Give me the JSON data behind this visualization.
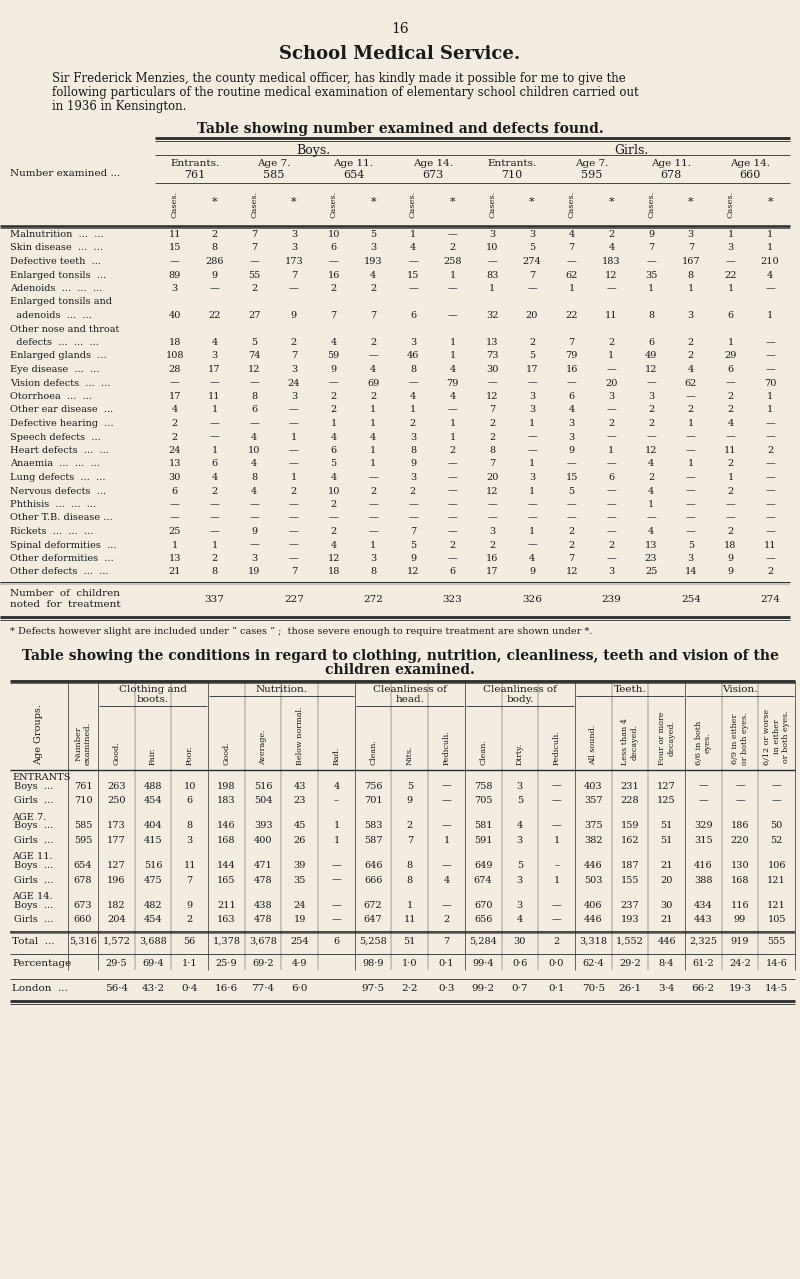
{
  "page_number": "16",
  "title": "School Medical Service.",
  "intro_line1": "Sir Frederick Menzies, the county medical officer, has kindly made it possible for me to give the",
  "intro_line2": "following particulars of the routine medical examination of elementary school children carried out",
  "intro_line3": "in 1936 in Kensington.",
  "table1_title": "Table showing number examined and defects found.",
  "table1_row_labels": [
    "Malnutrition  ...  ...",
    "Skin disease  ...  ...",
    "Defective teeth  ...",
    "Enlarged tonsils  ...",
    "Adenoids  ...  ...  ...",
    "Enlarged tonsils and",
    "  adenoids  ...  ...",
    "Other nose and throat",
    "  defects  ...  ...  ...",
    "Enlarged glands  ...",
    "Eye disease  ...  ...",
    "Vision defects  ...  ...",
    "Otorrhoea  ...  ...",
    "Other ear disease  ...",
    "Defective hearing  ...",
    "Speech defects  ...",
    "Heart defects  ...  ...",
    "Anaemia  ...  ...  ...",
    "Lung defects  ...  ...",
    "Nervous defects  ...",
    "Phthisis  ...  ...  ...",
    "Other T.B. disease ...",
    "Rickets  ...  ...  ...",
    "Spinal deformities  ...",
    "Other deformities  ...",
    "Other defects  ...  ..."
  ],
  "table1_data": [
    [
      "11",
      "2",
      "7",
      "3",
      "10",
      "5",
      "1",
      "—",
      "3",
      "3",
      "4",
      "2",
      "9",
      "3",
      "1",
      "1"
    ],
    [
      "15",
      "8",
      "7",
      "3",
      "6",
      "3",
      "4",
      "2",
      "10",
      "5",
      "7",
      "4",
      "7",
      "7",
      "3",
      "1"
    ],
    [
      "—",
      "286",
      "—",
      "173",
      "—",
      "193",
      "—",
      "258",
      "—",
      "274",
      "—",
      "183",
      "—",
      "167",
      "—",
      "210"
    ],
    [
      "89",
      "9",
      "55",
      "7",
      "16",
      "4",
      "15",
      "1",
      "83",
      "7",
      "62",
      "12",
      "35",
      "8",
      "22",
      "4"
    ],
    [
      "3",
      "—",
      "2",
      "—",
      "2",
      "2",
      "—",
      "—",
      "1",
      "—",
      "1",
      "—",
      "1",
      "1",
      "1",
      "—"
    ],
    null,
    [
      "40",
      "22",
      "27",
      "9",
      "7",
      "7",
      "6",
      "—",
      "32",
      "20",
      "22",
      "11",
      "8",
      "3",
      "6",
      "1"
    ],
    null,
    [
      "18",
      "4",
      "5",
      "2",
      "4",
      "2",
      "3",
      "1",
      "13",
      "2",
      "7",
      "2",
      "6",
      "2",
      "1",
      "—"
    ],
    [
      "108",
      "3",
      "74",
      "7",
      "59",
      "—",
      "46",
      "1",
      "73",
      "5",
      "79",
      "1",
      "49",
      "2",
      "29",
      "—"
    ],
    [
      "28",
      "17",
      "12",
      "3",
      "9",
      "4",
      "8",
      "4",
      "30",
      "17",
      "16",
      "—",
      "12",
      "4",
      "6",
      "—"
    ],
    [
      "—",
      "—",
      "—",
      "24",
      "—",
      "69",
      "—",
      "79",
      "—",
      "—",
      "—",
      "20",
      "—",
      "62",
      "—",
      "70"
    ],
    [
      "17",
      "11",
      "8",
      "3",
      "2",
      "2",
      "4",
      "4",
      "12",
      "3",
      "6",
      "3",
      "3",
      "—",
      "2",
      "1"
    ],
    [
      "4",
      "1",
      "6",
      "—",
      "2",
      "1",
      "1",
      "—",
      "7",
      "3",
      "4",
      "—",
      "2",
      "2",
      "2",
      "1"
    ],
    [
      "2",
      "—",
      "—",
      "—",
      "1",
      "1",
      "2",
      "1",
      "2",
      "1",
      "3",
      "2",
      "2",
      "1",
      "4",
      "—"
    ],
    [
      "2",
      "—",
      "4",
      "1",
      "4",
      "4",
      "3",
      "1",
      "2",
      "—",
      "3",
      "—",
      "—",
      "—",
      "—",
      "—"
    ],
    [
      "24",
      "1",
      "10",
      "—",
      "6",
      "1",
      "8",
      "2",
      "8",
      "—",
      "9",
      "1",
      "12",
      "—",
      "11",
      "2"
    ],
    [
      "13",
      "6",
      "4",
      "—",
      "5",
      "1",
      "9",
      "—",
      "7",
      "1",
      "—",
      "—",
      "4",
      "1",
      "2",
      "—"
    ],
    [
      "30",
      "4",
      "8",
      "1",
      "4",
      "—",
      "3",
      "—",
      "20",
      "3",
      "15",
      "6",
      "2",
      "—",
      "1",
      "—"
    ],
    [
      "6",
      "2",
      "4",
      "2",
      "10",
      "2",
      "2",
      "—",
      "12",
      "1",
      "5",
      "—",
      "4",
      "—",
      "2",
      "—"
    ],
    [
      "—",
      "—",
      "—",
      "—",
      "2",
      "—",
      "—",
      "—",
      "—",
      "—",
      "—",
      "—",
      "1",
      "—",
      "—",
      "—"
    ],
    [
      "—",
      "—",
      "—",
      "—",
      "—",
      "—",
      "—",
      "—",
      "—",
      "—",
      "—",
      "—",
      "—",
      "—",
      "—",
      "—"
    ],
    [
      "25",
      "—",
      "9",
      "—",
      "2",
      "—",
      "7",
      "—",
      "3",
      "1",
      "2",
      "—",
      "4",
      "—",
      "2",
      "—"
    ],
    [
      "1",
      "1",
      "—",
      "—",
      "4",
      "1",
      "5",
      "2",
      "2",
      "—",
      "2",
      "2",
      "13",
      "5",
      "18",
      "11"
    ],
    [
      "13",
      "2",
      "3",
      "—",
      "12",
      "3",
      "9",
      "—",
      "16",
      "4",
      "7",
      "—",
      "23",
      "3",
      "9",
      "—"
    ],
    [
      "21",
      "8",
      "19",
      "7",
      "18",
      "8",
      "12",
      "6",
      "17",
      "9",
      "12",
      "3",
      "25",
      "14",
      "9",
      "2"
    ]
  ],
  "table1_treatment": [
    "337",
    "227",
    "272",
    "323",
    "326",
    "239",
    "254",
    "274"
  ],
  "footnote": "* Defects however slight are included under “ cases ” ;  those severe enough to require treatment are shown under *.",
  "table2_title1": "Table showing the conditions in regard to clothing, nutrition, cleanliness, teeth and vision of the",
  "table2_title2": "children examined.",
  "table2_sub_col_labels": [
    "Good.",
    "Fair.",
    "Poor.",
    "Good.",
    "Average.",
    "Below normal.",
    "Bad.",
    "Clean.",
    "Nits.",
    "Pediculi.",
    "Clean.",
    "Dirty.",
    "Pediculi.",
    "All sound.",
    "Less than 4\ndecayed.",
    "Four or more\ndecayed.",
    "6/6 in both\neyes.",
    "6/9 in either\nor both eyes.",
    "6/12 or worse\nin either\nor both eyes."
  ],
  "table2_data": [
    [
      "761",
      "263",
      "488",
      "10",
      "198",
      "516",
      "43",
      "4",
      "756",
      "5",
      "—",
      "758",
      "3",
      "—",
      "403",
      "231",
      "127",
      "—",
      "—",
      "—"
    ],
    [
      "710",
      "250",
      "454",
      "6",
      "183",
      "504",
      "23",
      "–",
      "701",
      "9",
      "—",
      "705",
      "5",
      "—",
      "357",
      "228",
      "125",
      "—",
      "—",
      "—"
    ],
    [
      "585",
      "173",
      "404",
      "8",
      "146",
      "393",
      "45",
      "1",
      "583",
      "2",
      "—",
      "581",
      "4",
      "—",
      "375",
      "159",
      "51",
      "329",
      "186",
      "50"
    ],
    [
      "595",
      "177",
      "415",
      "3",
      "168",
      "400",
      "26",
      "1",
      "587",
      "7",
      "1",
      "591",
      "3",
      "1",
      "382",
      "162",
      "51",
      "315",
      "220",
      "52"
    ],
    [
      "654",
      "127",
      "516",
      "11",
      "144",
      "471",
      "39",
      "—",
      "646",
      "8",
      "—",
      "649",
      "5",
      "–",
      "446",
      "187",
      "21",
      "416",
      "130",
      "106"
    ],
    [
      "678",
      "196",
      "475",
      "7",
      "165",
      "478",
      "35",
      "—",
      "666",
      "8",
      "4",
      "674",
      "3",
      "1",
      "503",
      "155",
      "20",
      "388",
      "168",
      "121"
    ],
    [
      "673",
      "182",
      "482",
      "9",
      "211",
      "438",
      "24",
      "—",
      "672",
      "1",
      "—",
      "670",
      "3",
      "—",
      "406",
      "237",
      "30",
      "434",
      "116",
      "121"
    ],
    [
      "660",
      "204",
      "454",
      "2",
      "163",
      "478",
      "19",
      "—",
      "647",
      "11",
      "2",
      "656",
      "4",
      "—",
      "446",
      "193",
      "21",
      "443",
      "99",
      "105"
    ]
  ],
  "table2_totals": [
    "5,316",
    "1,572",
    "3,688",
    "56",
    "1,378",
    "3,678",
    "254",
    "6",
    "5,258",
    "51",
    "7",
    "5,284",
    "30",
    "2",
    "3,318",
    "1,552",
    "446",
    "2,325",
    "919",
    "555"
  ],
  "table2_pct": [
    "",
    "29·5",
    "69·4",
    "1·1",
    "25·9",
    "69·2",
    "4·9",
    "",
    "98·9",
    "1·0",
    "0·1",
    "99·4",
    "0·6",
    "0·0",
    "62·4",
    "29·2",
    "8·4",
    "61·2",
    "24·2",
    "14·6"
  ],
  "table2_london": [
    "",
    "56·4",
    "43·2",
    "0·4",
    "16·6",
    "77·4",
    "6·0",
    "",
    "97·5",
    "2·2",
    "0·3",
    "99·2",
    "0·7",
    "0·1",
    "70·5",
    "26·1",
    "3·4",
    "66·2",
    "19·3",
    "14·5"
  ],
  "bg_color": "#f2ede0",
  "line_color": "#2a2a2a",
  "text_color": "#1a1a1a"
}
